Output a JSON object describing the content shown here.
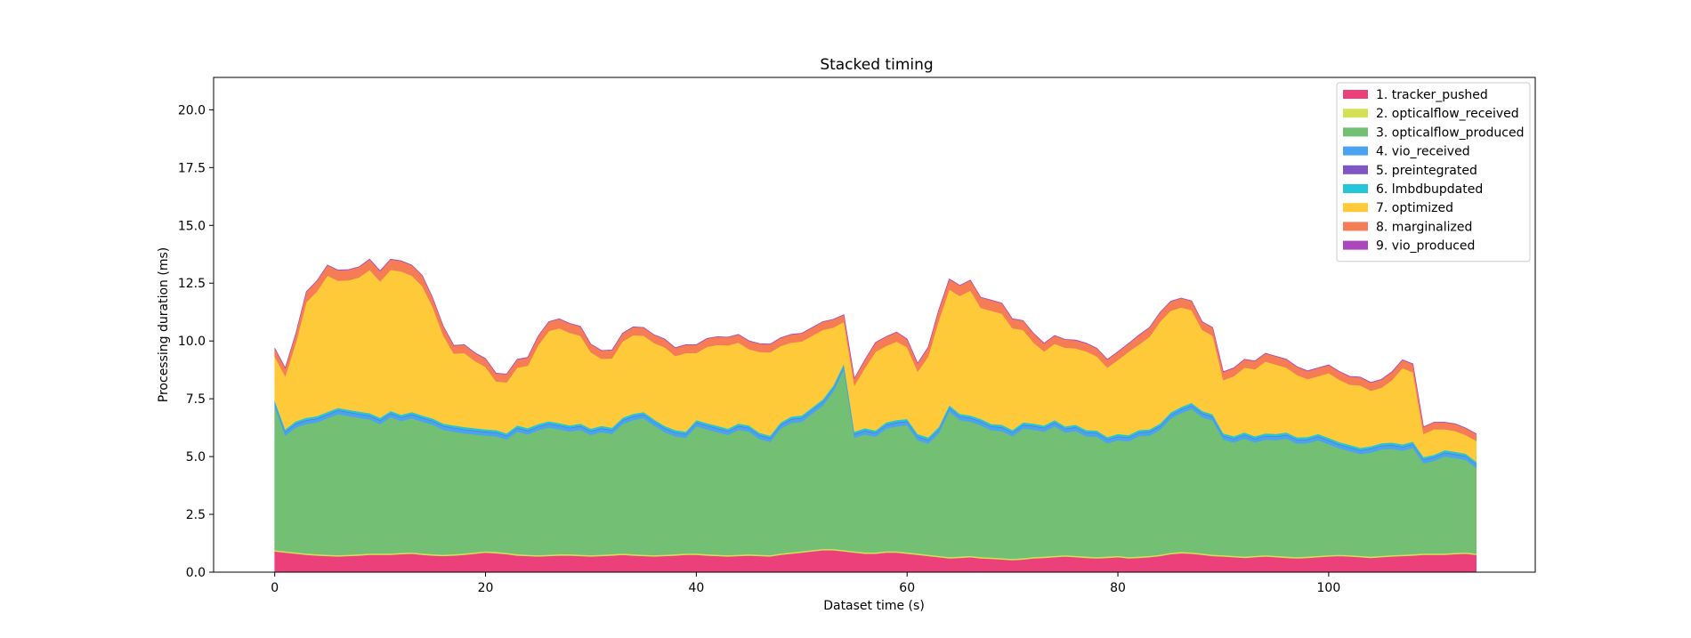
{
  "chart_data": {
    "type": "area",
    "stacked": true,
    "title": "Stacked timing",
    "xlabel": "Dataset time (s)",
    "ylabel": "Processing duration (ms)",
    "xlim": [
      -5.8,
      119.6
    ],
    "ylim": [
      0,
      21.4
    ],
    "xticks": [
      0,
      20,
      40,
      60,
      80,
      100
    ],
    "yticks": [
      0.0,
      2.5,
      5.0,
      7.5,
      10.0,
      12.5,
      15.0,
      17.5,
      20.0
    ],
    "xtick_labels": [
      "0",
      "20",
      "40",
      "60",
      "80",
      "100"
    ],
    "ytick_labels": [
      "0.0",
      "2.5",
      "5.0",
      "7.5",
      "10.0",
      "12.5",
      "15.0",
      "17.5",
      "20.0"
    ],
    "grid": false,
    "legend_position": "top-right",
    "x": [
      0,
      1,
      2,
      3,
      4,
      5,
      6,
      7,
      8,
      9,
      10,
      11,
      12,
      13,
      14,
      15,
      16,
      17,
      18,
      19,
      20,
      21,
      22,
      23,
      24,
      25,
      26,
      27,
      28,
      29,
      30,
      31,
      32,
      33,
      34,
      35,
      36,
      37,
      38,
      39,
      40,
      41,
      42,
      43,
      44,
      45,
      46,
      47,
      48,
      49,
      50,
      51,
      52,
      53,
      54,
      55,
      56,
      57,
      58,
      59,
      60,
      61,
      62,
      63,
      64,
      65,
      66,
      67,
      68,
      69,
      70,
      71,
      72,
      73,
      74,
      75,
      76,
      77,
      78,
      79,
      80,
      81,
      82,
      83,
      84,
      85,
      86,
      87,
      88,
      89,
      90,
      91,
      92,
      93,
      94,
      95,
      96,
      97,
      98,
      99,
      100,
      101,
      102,
      103,
      104,
      105,
      106,
      107,
      108,
      109,
      110,
      111,
      112,
      113,
      114
    ],
    "series": [
      {
        "name": "1. tracker_pushed",
        "color": "#ec407a",
        "values": [
          0.9,
          0.85,
          0.8,
          0.75,
          0.72,
          0.7,
          0.68,
          0.7,
          0.72,
          0.75,
          0.75,
          0.75,
          0.78,
          0.8,
          0.75,
          0.72,
          0.7,
          0.72,
          0.75,
          0.8,
          0.85,
          0.82,
          0.78,
          0.72,
          0.7,
          0.68,
          0.7,
          0.72,
          0.72,
          0.7,
          0.68,
          0.7,
          0.72,
          0.75,
          0.72,
          0.7,
          0.68,
          0.7,
          0.72,
          0.75,
          0.75,
          0.72,
          0.7,
          0.68,
          0.7,
          0.72,
          0.7,
          0.68,
          0.75,
          0.8,
          0.85,
          0.9,
          0.95,
          0.95,
          0.9,
          0.85,
          0.8,
          0.8,
          0.85,
          0.85,
          0.8,
          0.75,
          0.7,
          0.65,
          0.6,
          0.62,
          0.65,
          0.6,
          0.58,
          0.55,
          0.52,
          0.55,
          0.6,
          0.62,
          0.65,
          0.68,
          0.65,
          0.62,
          0.6,
          0.62,
          0.65,
          0.6,
          0.62,
          0.65,
          0.7,
          0.78,
          0.82,
          0.8,
          0.75,
          0.7,
          0.68,
          0.65,
          0.62,
          0.65,
          0.68,
          0.65,
          0.62,
          0.6,
          0.62,
          0.65,
          0.68,
          0.7,
          0.68,
          0.65,
          0.62,
          0.65,
          0.68,
          0.7,
          0.72,
          0.75,
          0.75,
          0.75,
          0.78,
          0.8,
          0.75
        ]
      },
      {
        "name": "2. opticalflow_received",
        "color": "#d4e157",
        "values": [
          0.06,
          0.06,
          0.06,
          0.06,
          0.06,
          0.06,
          0.06,
          0.06,
          0.06,
          0.06,
          0.06,
          0.06,
          0.06,
          0.06,
          0.06,
          0.06,
          0.06,
          0.06,
          0.06,
          0.06,
          0.06,
          0.06,
          0.06,
          0.06,
          0.06,
          0.06,
          0.06,
          0.06,
          0.06,
          0.06,
          0.06,
          0.06,
          0.06,
          0.06,
          0.06,
          0.06,
          0.06,
          0.06,
          0.06,
          0.06,
          0.06,
          0.06,
          0.06,
          0.06,
          0.06,
          0.06,
          0.06,
          0.06,
          0.06,
          0.06,
          0.06,
          0.06,
          0.06,
          0.06,
          0.06,
          0.06,
          0.06,
          0.06,
          0.06,
          0.06,
          0.06,
          0.06,
          0.06,
          0.06,
          0.06,
          0.06,
          0.06,
          0.06,
          0.06,
          0.06,
          0.06,
          0.06,
          0.06,
          0.06,
          0.06,
          0.06,
          0.06,
          0.06,
          0.06,
          0.06,
          0.06,
          0.06,
          0.06,
          0.06,
          0.06,
          0.06,
          0.06,
          0.06,
          0.06,
          0.06,
          0.06,
          0.06,
          0.06,
          0.06,
          0.06,
          0.06,
          0.06,
          0.06,
          0.06,
          0.06,
          0.06,
          0.06,
          0.06,
          0.06,
          0.06,
          0.06,
          0.06,
          0.06,
          0.06,
          0.06,
          0.06,
          0.06,
          0.06,
          0.06,
          0.06
        ]
      },
      {
        "name": "3. opticalflow_produced",
        "color": "#73bf73",
        "values": [
          6.2,
          5.0,
          5.4,
          5.6,
          5.7,
          5.9,
          6.1,
          6.0,
          5.9,
          5.8,
          5.6,
          5.9,
          5.7,
          5.8,
          5.7,
          5.6,
          5.4,
          5.3,
          5.2,
          5.1,
          5.0,
          5.0,
          4.9,
          5.3,
          5.2,
          5.4,
          5.5,
          5.4,
          5.3,
          5.4,
          5.2,
          5.3,
          5.2,
          5.6,
          5.8,
          5.9,
          5.6,
          5.3,
          5.1,
          5.0,
          5.5,
          5.4,
          5.3,
          5.2,
          5.4,
          5.3,
          5.0,
          4.9,
          5.4,
          5.6,
          5.6,
          5.9,
          6.2,
          6.8,
          7.8,
          4.9,
          5.1,
          5.0,
          5.3,
          5.4,
          5.5,
          4.9,
          4.8,
          5.3,
          6.3,
          5.9,
          5.8,
          5.7,
          5.5,
          5.5,
          5.3,
          5.6,
          5.5,
          5.4,
          5.6,
          5.3,
          5.4,
          5.2,
          5.2,
          4.9,
          5.0,
          5.0,
          5.2,
          5.2,
          5.4,
          5.8,
          6.0,
          6.2,
          5.9,
          5.8,
          5.0,
          4.9,
          5.1,
          4.9,
          5.0,
          5.0,
          5.1,
          4.9,
          4.9,
          5.0,
          4.8,
          4.6,
          4.5,
          4.4,
          4.5,
          4.6,
          4.6,
          4.5,
          4.6,
          3.9,
          4.0,
          4.2,
          4.1,
          4.0,
          3.7
        ]
      },
      {
        "name": "4. vio_received",
        "color": "#4aa3f0",
        "values": [
          0.15,
          0.15,
          0.15,
          0.15,
          0.15,
          0.15,
          0.15,
          0.15,
          0.15,
          0.15,
          0.15,
          0.15,
          0.15,
          0.15,
          0.15,
          0.15,
          0.15,
          0.15,
          0.15,
          0.15,
          0.15,
          0.15,
          0.15,
          0.15,
          0.15,
          0.15,
          0.15,
          0.15,
          0.15,
          0.15,
          0.15,
          0.15,
          0.15,
          0.15,
          0.15,
          0.15,
          0.15,
          0.15,
          0.15,
          0.15,
          0.15,
          0.15,
          0.15,
          0.15,
          0.15,
          0.15,
          0.15,
          0.15,
          0.15,
          0.15,
          0.15,
          0.15,
          0.15,
          0.15,
          0.15,
          0.15,
          0.15,
          0.15,
          0.15,
          0.15,
          0.15,
          0.15,
          0.15,
          0.15,
          0.15,
          0.15,
          0.15,
          0.15,
          0.15,
          0.15,
          0.15,
          0.15,
          0.15,
          0.15,
          0.15,
          0.15,
          0.15,
          0.15,
          0.15,
          0.15,
          0.15,
          0.15,
          0.15,
          0.15,
          0.15,
          0.15,
          0.15,
          0.15,
          0.15,
          0.15,
          0.15,
          0.15,
          0.15,
          0.15,
          0.15,
          0.15,
          0.15,
          0.15,
          0.15,
          0.15,
          0.15,
          0.15,
          0.15,
          0.15,
          0.15,
          0.15,
          0.15,
          0.15,
          0.15,
          0.15,
          0.15,
          0.15,
          0.15,
          0.15,
          0.15
        ]
      },
      {
        "name": "5. preintegrated",
        "color": "#7e57c2",
        "values": [
          0.02,
          0.02,
          0.02,
          0.02,
          0.02,
          0.02,
          0.02,
          0.02,
          0.02,
          0.02,
          0.02,
          0.02,
          0.02,
          0.02,
          0.02,
          0.02,
          0.02,
          0.02,
          0.02,
          0.02,
          0.02,
          0.02,
          0.02,
          0.02,
          0.02,
          0.02,
          0.02,
          0.02,
          0.02,
          0.02,
          0.02,
          0.02,
          0.02,
          0.02,
          0.02,
          0.02,
          0.02,
          0.02,
          0.02,
          0.02,
          0.02,
          0.02,
          0.02,
          0.02,
          0.02,
          0.02,
          0.02,
          0.02,
          0.02,
          0.02,
          0.02,
          0.02,
          0.02,
          0.02,
          0.02,
          0.02,
          0.02,
          0.02,
          0.02,
          0.02,
          0.02,
          0.02,
          0.02,
          0.02,
          0.02,
          0.02,
          0.02,
          0.02,
          0.02,
          0.02,
          0.02,
          0.02,
          0.02,
          0.02,
          0.02,
          0.02,
          0.02,
          0.02,
          0.02,
          0.02,
          0.02,
          0.02,
          0.02,
          0.02,
          0.02,
          0.02,
          0.02,
          0.02,
          0.02,
          0.02,
          0.02,
          0.02,
          0.02,
          0.02,
          0.02,
          0.02,
          0.02,
          0.02,
          0.02,
          0.02,
          0.02,
          0.02,
          0.02,
          0.02,
          0.02,
          0.02,
          0.02,
          0.02,
          0.02,
          0.02,
          0.02,
          0.02,
          0.02,
          0.02,
          0.02
        ]
      },
      {
        "name": "6. lmbdbupdated",
        "color": "#26c6da",
        "values": [
          0.1,
          0.1,
          0.1,
          0.1,
          0.1,
          0.1,
          0.1,
          0.1,
          0.1,
          0.1,
          0.1,
          0.1,
          0.1,
          0.1,
          0.1,
          0.1,
          0.1,
          0.1,
          0.1,
          0.1,
          0.1,
          0.1,
          0.1,
          0.1,
          0.1,
          0.1,
          0.1,
          0.1,
          0.1,
          0.1,
          0.1,
          0.1,
          0.1,
          0.1,
          0.1,
          0.1,
          0.1,
          0.1,
          0.1,
          0.1,
          0.1,
          0.1,
          0.1,
          0.1,
          0.1,
          0.1,
          0.1,
          0.1,
          0.1,
          0.1,
          0.1,
          0.1,
          0.1,
          0.1,
          0.1,
          0.1,
          0.1,
          0.1,
          0.1,
          0.1,
          0.1,
          0.1,
          0.1,
          0.1,
          0.1,
          0.1,
          0.1,
          0.1,
          0.1,
          0.1,
          0.1,
          0.1,
          0.1,
          0.1,
          0.1,
          0.1,
          0.1,
          0.1,
          0.1,
          0.1,
          0.1,
          0.1,
          0.1,
          0.1,
          0.1,
          0.1,
          0.1,
          0.1,
          0.1,
          0.1,
          0.1,
          0.1,
          0.1,
          0.1,
          0.1,
          0.1,
          0.1,
          0.1,
          0.1,
          0.1,
          0.1,
          0.1,
          0.1,
          0.1,
          0.1,
          0.1,
          0.1,
          0.1,
          0.1,
          0.1,
          0.1,
          0.1,
          0.1,
          0.1,
          0.1
        ]
      },
      {
        "name": "7. optimized",
        "color": "#ffca3a",
        "values": [
          1.9,
          2.3,
          3.4,
          5.0,
          5.4,
          5.9,
          5.5,
          5.6,
          5.8,
          6.2,
          5.9,
          6.1,
          6.2,
          5.9,
          5.6,
          4.8,
          3.8,
          3.1,
          3.2,
          2.9,
          2.7,
          2.1,
          2.2,
          2.5,
          2.7,
          3.4,
          3.9,
          4.1,
          4.0,
          3.8,
          3.3,
          2.9,
          3.0,
          3.3,
          3.4,
          3.3,
          3.3,
          3.4,
          3.2,
          3.4,
          2.9,
          3.3,
          3.5,
          3.6,
          3.5,
          3.3,
          3.5,
          3.6,
          3.3,
          3.2,
          3.2,
          3.1,
          3.0,
          2.5,
          1.8,
          2.0,
          2.6,
          3.4,
          3.3,
          3.4,
          3.1,
          2.7,
          3.5,
          4.6,
          5.0,
          5.1,
          5.4,
          4.8,
          4.9,
          4.8,
          4.4,
          4.0,
          3.5,
          3.2,
          3.3,
          3.4,
          3.3,
          3.4,
          3.2,
          3.0,
          3.2,
          3.6,
          3.7,
          4.0,
          4.4,
          4.4,
          4.3,
          4.0,
          3.5,
          3.4,
          2.3,
          2.6,
          2.8,
          2.9,
          3.1,
          3.0,
          2.8,
          2.7,
          2.5,
          2.5,
          2.8,
          2.7,
          2.6,
          2.7,
          2.4,
          2.4,
          2.7,
          3.3,
          3.0,
          1.0,
          1.1,
          0.9,
          0.9,
          0.8,
          0.9
        ]
      },
      {
        "name": "8. marginalized",
        "color": "#f57c55",
        "values": [
          0.35,
          0.35,
          0.4,
          0.45,
          0.45,
          0.45,
          0.45,
          0.45,
          0.45,
          0.45,
          0.45,
          0.45,
          0.45,
          0.45,
          0.45,
          0.4,
          0.4,
          0.35,
          0.35,
          0.35,
          0.35,
          0.35,
          0.35,
          0.35,
          0.35,
          0.4,
          0.4,
          0.4,
          0.4,
          0.4,
          0.35,
          0.35,
          0.35,
          0.35,
          0.35,
          0.35,
          0.35,
          0.35,
          0.35,
          0.35,
          0.35,
          0.35,
          0.35,
          0.35,
          0.35,
          0.35,
          0.35,
          0.35,
          0.35,
          0.35,
          0.35,
          0.35,
          0.35,
          0.35,
          0.3,
          0.3,
          0.35,
          0.4,
          0.4,
          0.4,
          0.35,
          0.35,
          0.4,
          0.45,
          0.45,
          0.45,
          0.45,
          0.45,
          0.45,
          0.45,
          0.4,
          0.4,
          0.4,
          0.35,
          0.35,
          0.35,
          0.35,
          0.35,
          0.35,
          0.35,
          0.35,
          0.35,
          0.4,
          0.4,
          0.4,
          0.4,
          0.4,
          0.4,
          0.35,
          0.35,
          0.35,
          0.35,
          0.35,
          0.35,
          0.35,
          0.35,
          0.35,
          0.35,
          0.35,
          0.35,
          0.35,
          0.35,
          0.35,
          0.35,
          0.35,
          0.35,
          0.35,
          0.35,
          0.35,
          0.3,
          0.3,
          0.3,
          0.3,
          0.3,
          0.3
        ]
      },
      {
        "name": "9. vio_produced",
        "color": "#ab47bc",
        "values": [
          0.01,
          0.01,
          0.01,
          0.01,
          0.01,
          0.01,
          0.01,
          0.01,
          0.01,
          0.01,
          0.01,
          0.01,
          0.01,
          0.01,
          0.01,
          0.01,
          0.01,
          0.01,
          0.01,
          0.01,
          0.01,
          0.01,
          0.01,
          0.01,
          0.01,
          0.01,
          0.01,
          0.01,
          0.01,
          0.01,
          0.01,
          0.01,
          0.01,
          0.01,
          0.01,
          0.01,
          0.01,
          0.01,
          0.01,
          0.01,
          0.01,
          0.01,
          0.01,
          0.01,
          0.01,
          0.01,
          0.01,
          0.01,
          0.01,
          0.01,
          0.01,
          0.01,
          0.01,
          0.01,
          0.01,
          0.01,
          0.01,
          0.01,
          0.01,
          0.01,
          0.01,
          0.01,
          0.01,
          0.01,
          0.01,
          0.01,
          0.01,
          0.01,
          0.01,
          0.01,
          0.01,
          0.01,
          0.01,
          0.01,
          0.01,
          0.01,
          0.01,
          0.01,
          0.01,
          0.01,
          0.01,
          0.01,
          0.01,
          0.01,
          0.01,
          0.01,
          0.01,
          0.01,
          0.01,
          0.01,
          0.01,
          0.01,
          0.01,
          0.01,
          0.01,
          0.01,
          0.01,
          0.01,
          0.01,
          0.01,
          0.01,
          0.01,
          0.01,
          0.01,
          0.01,
          0.01,
          0.01,
          0.01,
          0.01,
          0.01,
          0.01,
          0.01,
          0.01,
          0.01,
          0.01
        ]
      }
    ]
  }
}
